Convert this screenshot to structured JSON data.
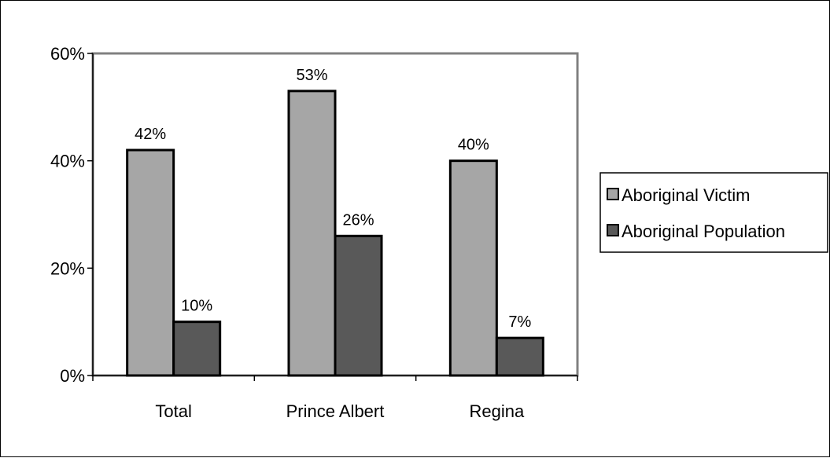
{
  "chart_data": {
    "type": "bar",
    "categories": [
      "Total",
      "Prince Albert",
      "Regina"
    ],
    "series": [
      {
        "name": "Aboriginal Victim",
        "values": [
          42,
          53,
          40
        ],
        "color": "#a6a6a6",
        "labels": [
          "42%",
          "53%",
          "40%"
        ]
      },
      {
        "name": "Aboriginal Population",
        "values": [
          10,
          26,
          7
        ],
        "color": "#595959",
        "labels": [
          "10%",
          "26%",
          "7%"
        ]
      }
    ],
    "yticks": [
      0,
      20,
      40,
      60
    ],
    "ytick_labels": [
      "0%",
      "20%",
      "40%",
      "60%"
    ],
    "ylim": [
      0,
      60
    ],
    "grid": false,
    "legend_position": "right",
    "plot_border_color": "#808080"
  }
}
